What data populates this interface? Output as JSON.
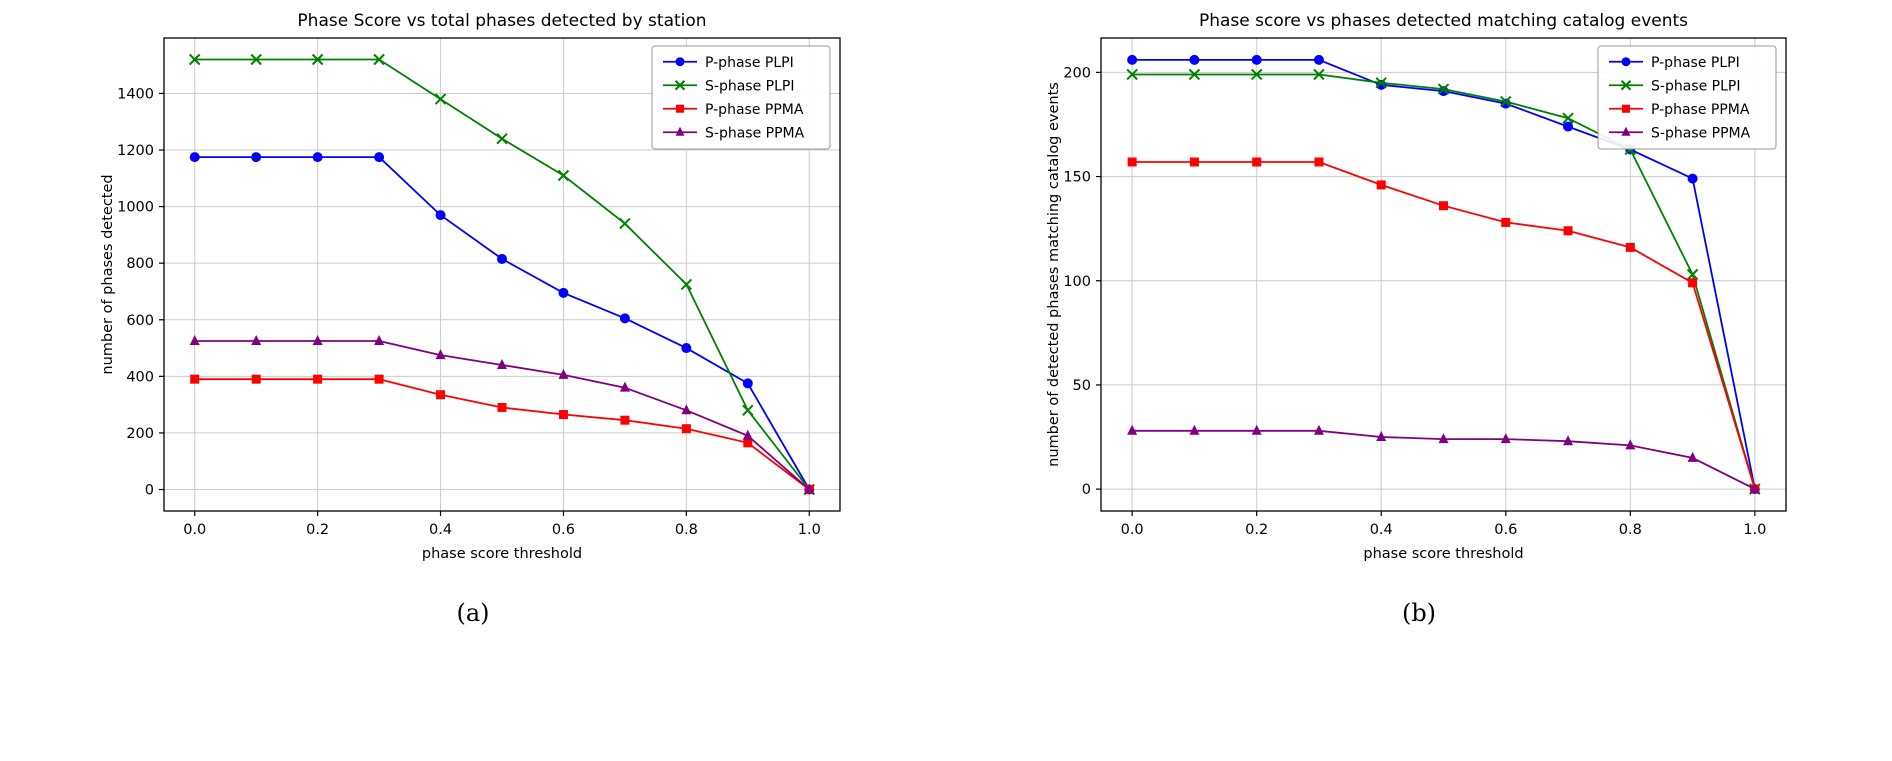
{
  "figure": {
    "background": "#ffffff",
    "grid_color": "#cccccc",
    "spine_color": "#000000",
    "legend_border_color": "#999999"
  },
  "chart_data": [
    {
      "type": "line",
      "title": "Phase Score vs total phases detected by station",
      "xlabel": "phase score threshold",
      "ylabel": "number of phases detected",
      "caption": "(a)",
      "grid": true,
      "legend_position": "top-right",
      "x": [
        0.0,
        0.1,
        0.2,
        0.3,
        0.4,
        0.5,
        0.6,
        0.7,
        0.8,
        0.9,
        1.0
      ],
      "xlim": [
        -0.05,
        1.05
      ],
      "ylim": [
        -76,
        1596
      ],
      "xticks": [
        0.0,
        0.2,
        0.4,
        0.6,
        0.8,
        1.0
      ],
      "yticks": [
        0,
        200,
        400,
        600,
        800,
        1000,
        1200,
        1400
      ],
      "series": [
        {
          "name": "P-phase PLPI",
          "color": "#0000ff",
          "marker": "circle",
          "values": [
            1175,
            1175,
            1175,
            1175,
            970,
            815,
            695,
            605,
            500,
            375,
            0
          ]
        },
        {
          "name": "S-phase PLPI",
          "color": "#008000",
          "marker": "x",
          "values": [
            1520,
            1520,
            1520,
            1520,
            1380,
            1240,
            1110,
            940,
            725,
            280,
            0
          ]
        },
        {
          "name": "P-phase PPMA",
          "color": "#ff0000",
          "marker": "square",
          "values": [
            390,
            390,
            390,
            390,
            335,
            290,
            265,
            245,
            215,
            165,
            0
          ]
        },
        {
          "name": "S-phase PPMA",
          "color": "#800080",
          "marker": "triangle",
          "values": [
            525,
            525,
            525,
            525,
            475,
            440,
            405,
            360,
            280,
            190,
            0
          ]
        }
      ]
    },
    {
      "type": "line",
      "title": "Phase score vs phases detected matching catalog events",
      "xlabel": "phase score threshold",
      "ylabel": "number of detected phases matching catalog events",
      "caption": "(b)",
      "grid": true,
      "legend_position": "top-right",
      "x": [
        0.0,
        0.1,
        0.2,
        0.3,
        0.4,
        0.5,
        0.6,
        0.7,
        0.8,
        0.9,
        1.0
      ],
      "xlim": [
        -0.05,
        1.05
      ],
      "ylim": [
        -10.5,
        216.5
      ],
      "xticks": [
        0.0,
        0.2,
        0.4,
        0.6,
        0.8,
        1.0
      ],
      "yticks": [
        0,
        50,
        100,
        150,
        200
      ],
      "series": [
        {
          "name": "P-phase PLPI",
          "color": "#0000ff",
          "marker": "circle",
          "values": [
            206,
            206,
            206,
            206,
            194,
            191,
            185,
            174,
            163,
            149,
            0
          ]
        },
        {
          "name": "S-phase PLPI",
          "color": "#008000",
          "marker": "x",
          "values": [
            199,
            199,
            199,
            199,
            195,
            192,
            186,
            178,
            163,
            103,
            0
          ]
        },
        {
          "name": "P-phase PPMA",
          "color": "#ff0000",
          "marker": "square",
          "values": [
            157,
            157,
            157,
            157,
            146,
            136,
            128,
            124,
            116,
            99,
            0
          ]
        },
        {
          "name": "S-phase PPMA",
          "color": "#800080",
          "marker": "triangle",
          "values": [
            28,
            28,
            28,
            28,
            25,
            24,
            24,
            23,
            21,
            15,
            0
          ]
        }
      ]
    }
  ]
}
